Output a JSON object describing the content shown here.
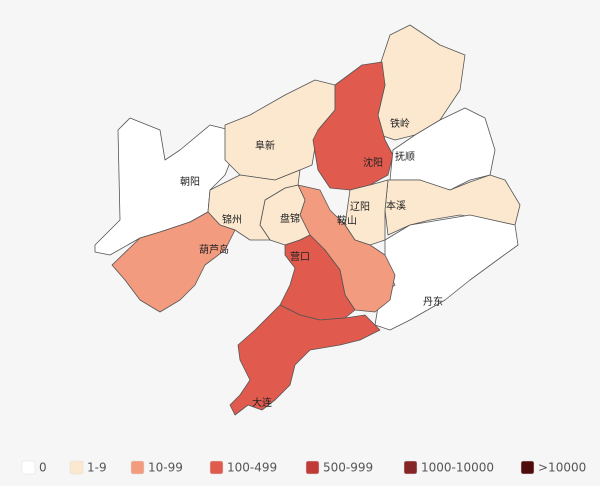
{
  "regions": [
    {
      "name": "朝阳",
      "color": "#ffffff"
    },
    {
      "name": "阜新",
      "color": "#fbe8cf"
    },
    {
      "name": "铁岭",
      "color": "#fbe8cf"
    },
    {
      "name": "沈阳",
      "color": "#e05a4e"
    },
    {
      "name": "抚顺",
      "color": "#ffffff"
    },
    {
      "name": "本溪",
      "color": "#fbe8cf"
    },
    {
      "name": "丹东",
      "color": "#ffffff"
    },
    {
      "name": "辽阳",
      "color": "#fbe8cf"
    },
    {
      "name": "鞍山",
      "color": "#f39b7e"
    },
    {
      "name": "盘锦",
      "color": "#fbe8cf"
    },
    {
      "name": "锦州",
      "color": "#fbe8cf"
    },
    {
      "name": "葫芦岛",
      "color": "#f39b7e"
    },
    {
      "name": "营口",
      "color": "#e05a4e"
    },
    {
      "name": "大连",
      "color": "#e05a4e"
    }
  ],
  "legend": [
    {
      "label": "0",
      "color": "#ffffff"
    },
    {
      "label": "1-9",
      "color": "#fbe8cf"
    },
    {
      "label": "10-99",
      "color": "#f39b7e"
    },
    {
      "label": "100-499",
      "color": "#e05a4e"
    },
    {
      "label": "500-999",
      "color": "#c23a35"
    },
    {
      "label": "1000-10000",
      "color": "#862525"
    },
    {
      "label": ">10000",
      "color": "#4f0c0c"
    }
  ]
}
